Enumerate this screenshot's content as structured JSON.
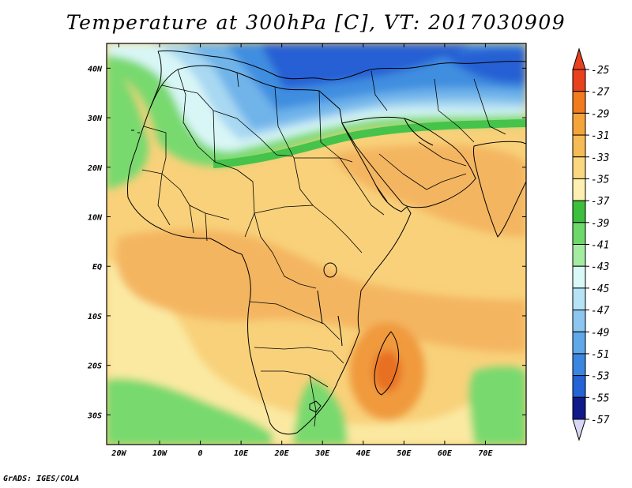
{
  "title": "Temperature at 300hPa [C], VT: 2017030909",
  "footer": "GrADS: IGES/COLA",
  "map": {
    "lon_range": [
      -23,
      80
    ],
    "lat_range": [
      -36,
      45
    ],
    "lon_ticks": [
      "20W",
      "10W",
      "0",
      "10E",
      "20E",
      "30E",
      "40E",
      "50E",
      "60E",
      "70E"
    ],
    "lat_ticks": [
      "40N",
      "30N",
      "20N",
      "10N",
      "EQ",
      "10S",
      "20S",
      "30S"
    ],
    "colors": {
      "warm_low": "#fbe9a2",
      "warm": "#f8d17a",
      "warm_mid": "#f4b560",
      "warm_high": "#f09a3e",
      "hot": "#e86f22",
      "green_dark": "#45c34a",
      "green": "#78d96e",
      "green_light": "#a8ecaa",
      "cyan_light": "#d9f6f6",
      "blue_light": "#a8d8f2",
      "blue": "#6fb4ea",
      "blue_mid": "#3f8ee0",
      "blue_dark": "#2760d4"
    }
  },
  "colorbar": {
    "labels": [
      "-25",
      "-27",
      "-29",
      "-31",
      "-33",
      "-35",
      "-37",
      "-39",
      "-41",
      "-43",
      "-45",
      "-47",
      "-49",
      "-51",
      "-53",
      "-55",
      "-57"
    ],
    "colors": [
      "#e8411e",
      "#f27b1d",
      "#f5a43a",
      "#f7bb55",
      "#fad880",
      "#fdf0b0",
      "#3cbf3d",
      "#6fd86b",
      "#a4eca2",
      "#d9f8f8",
      "#b7e3f6",
      "#8cc7f0",
      "#5fa9ea",
      "#3a86e0",
      "#2464d6",
      "#1840bf",
      "#101a8a"
    ],
    "top_arrow_color": "#e8411e",
    "bottom_arrow_color": "#d8d8f4"
  }
}
